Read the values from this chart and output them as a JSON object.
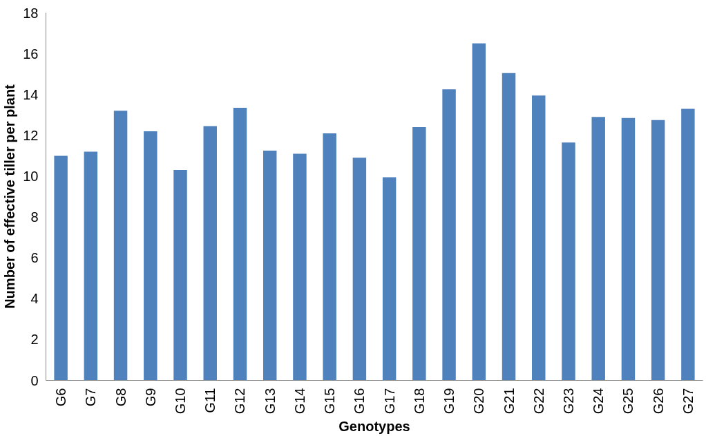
{
  "chart_data": {
    "type": "bar",
    "xlabel": "Genotypes",
    "ylabel": "Number of effective tiller per plant",
    "categories": [
      "G6",
      "G7",
      "G8",
      "G9",
      "G10",
      "G11",
      "G12",
      "G13",
      "G14",
      "G15",
      "G16",
      "G17",
      "G18",
      "G19",
      "G20",
      "G21",
      "G22",
      "G23",
      "G24",
      "G25",
      "G26",
      "G27"
    ],
    "values": [
      11.0,
      11.2,
      13.2,
      12.2,
      10.3,
      12.45,
      13.35,
      11.25,
      11.1,
      12.1,
      10.9,
      9.95,
      12.4,
      14.25,
      16.5,
      15.05,
      13.95,
      11.65,
      12.9,
      12.85,
      12.75,
      13.3
    ],
    "color": "#4f81bd",
    "ylim": [
      0,
      18
    ],
    "yticks": [
      0,
      2,
      4,
      6,
      8,
      10,
      12,
      14,
      16,
      18
    ],
    "grid": false
  }
}
